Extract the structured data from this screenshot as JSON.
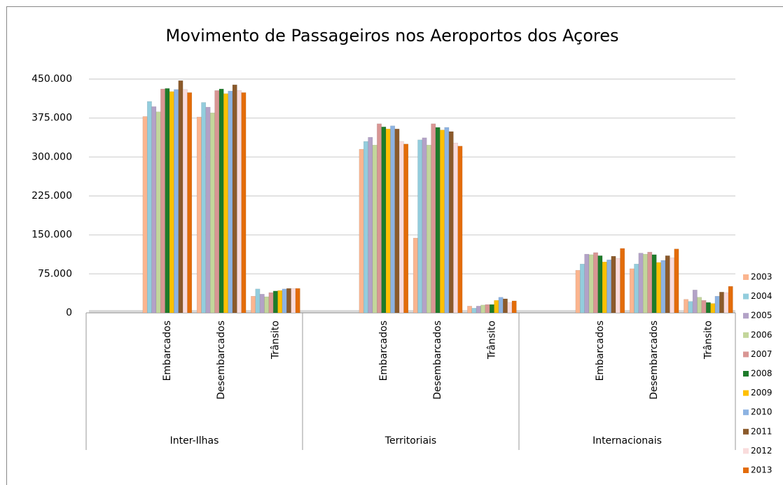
{
  "chart_data": {
    "type": "bar",
    "title": "Movimento de Passageiros nos Aeroportos dos Açores",
    "categories": [
      null,
      "Embarcados",
      "Desembarcados",
      "Trânsito",
      null,
      "Embarcados",
      "Desembarcados",
      "Trânsito",
      null,
      "Embarcados",
      "Desembarcados",
      "Trânsito"
    ],
    "groups": [
      "Inter-Ilhas",
      "Territoriais",
      "Internacionais"
    ],
    "ylim": [
      0,
      450000
    ],
    "yticks": [
      0,
      {
        "value": 75000,
        "label": "75.000"
      },
      {
        "value": 150000,
        "label": "150.000"
      },
      {
        "value": 225000,
        "label": "225.000"
      },
      {
        "value": 300000,
        "label": "300.000"
      },
      {
        "value": 375000,
        "label": "375.000"
      },
      {
        "value": 450000,
        "label": "450.000"
      }
    ],
    "grid": true,
    "legend": "right",
    "series": [
      {
        "name": "2003",
        "color": "#fbb58f",
        "values": [
          null,
          378000,
          377000,
          32000,
          null,
          315000,
          144000,
          13000,
          null,
          82000,
          85000,
          26000
        ]
      },
      {
        "name": "2004",
        "color": "#93cddd",
        "values": [
          null,
          407000,
          405000,
          46000,
          null,
          330000,
          333000,
          9000,
          null,
          94000,
          94000,
          22000
        ]
      },
      {
        "name": "2005",
        "color": "#b3a2c7",
        "values": [
          null,
          397000,
          396000,
          36000,
          null,
          338000,
          337000,
          13000,
          null,
          113000,
          115000,
          44000
        ]
      },
      {
        "name": "2006",
        "color": "#c3d69b",
        "values": [
          null,
          387000,
          385000,
          31000,
          null,
          323000,
          323000,
          15000,
          null,
          112000,
          113000,
          30000
        ]
      },
      {
        "name": "2007",
        "color": "#d99694",
        "values": [
          null,
          431000,
          428000,
          39000,
          null,
          364000,
          364000,
          16000,
          null,
          116000,
          117000,
          24000
        ]
      },
      {
        "name": "2008",
        "color": "#1e7b2a",
        "values": [
          null,
          432000,
          431000,
          42000,
          null,
          358000,
          357000,
          16000,
          null,
          110000,
          112000,
          20000
        ]
      },
      {
        "name": "2009",
        "color": "#ffc000",
        "values": [
          null,
          426000,
          422000,
          43000,
          null,
          354000,
          352000,
          24000,
          null,
          98000,
          97000,
          18000
        ]
      },
      {
        "name": "2010",
        "color": "#8db3e2",
        "values": [
          null,
          430000,
          427000,
          46000,
          null,
          360000,
          357000,
          30000,
          null,
          102000,
          101000,
          32000
        ]
      },
      {
        "name": "2011",
        "color": "#8b5a2b",
        "values": [
          null,
          447000,
          439000,
          47000,
          null,
          354000,
          349000,
          27000,
          null,
          109000,
          110000,
          40000
        ]
      },
      {
        "name": "2012",
        "color": "#f9dcdc",
        "values": [
          null,
          430000,
          428000,
          47000,
          null,
          330000,
          327000,
          20000,
          null,
          105000,
          106000,
          39000
        ]
      },
      {
        "name": "2013",
        "color": "#e36c09",
        "values": [
          null,
          424000,
          424000,
          47000,
          null,
          325000,
          321000,
          23000,
          null,
          124000,
          123000,
          51000
        ]
      }
    ]
  }
}
